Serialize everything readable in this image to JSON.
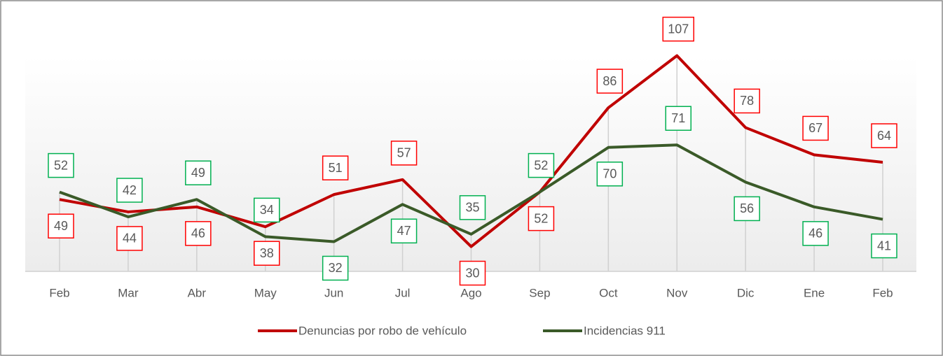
{
  "chart_data": {
    "type": "line",
    "categories": [
      "Feb",
      "Mar",
      "Abr",
      "May",
      "Jun",
      "Jul",
      "Ago",
      "Sep",
      "Oct",
      "Nov",
      "Dic",
      "Ene",
      "Feb"
    ],
    "series": [
      {
        "name": "Denuncias por robo de vehículo",
        "color": "#c00000",
        "label_color": "#ff0000",
        "values": [
          49,
          44,
          46,
          38,
          51,
          57,
          30,
          52,
          86,
          107,
          78,
          67,
          64
        ]
      },
      {
        "name": "Incidencias 911",
        "color": "#3a5a28",
        "label_color": "#00b050",
        "values": [
          52,
          42,
          49,
          34,
          32,
          47,
          35,
          52,
          70,
          71,
          56,
          46,
          41
        ]
      }
    ],
    "ylim": [
      20,
      110
    ],
    "legend": "bottom"
  }
}
